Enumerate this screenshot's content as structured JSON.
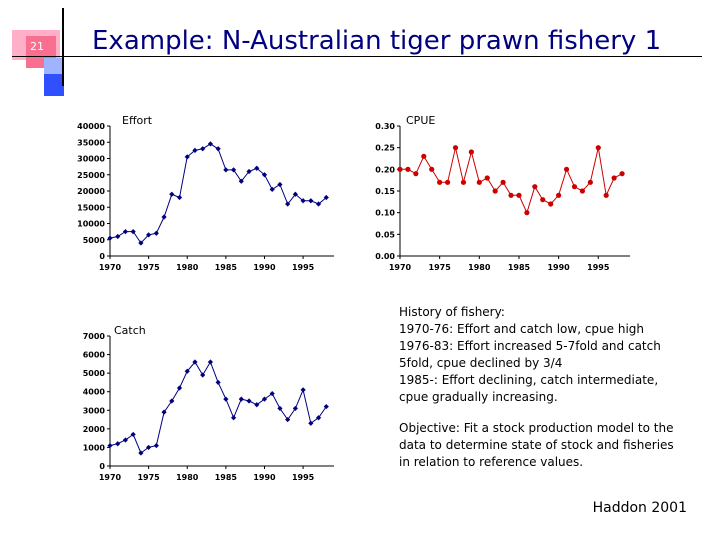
{
  "slide": {
    "number": "21",
    "title": "Example: N-Australian tiger prawn fishery 1"
  },
  "colors": {
    "effort": "#000080",
    "cpue": "#cc0000",
    "catch": "#000080",
    "title": "#000080"
  },
  "chart_data": [
    {
      "type": "line",
      "title": "Effort",
      "x": [
        1970,
        1971,
        1972,
        1973,
        1974,
        1975,
        1976,
        1977,
        1978,
        1979,
        1980,
        1981,
        1982,
        1983,
        1984,
        1985,
        1986,
        1987,
        1988,
        1989,
        1990,
        1991,
        1992,
        1993,
        1994,
        1995,
        1996,
        1997,
        1998
      ],
      "values": [
        5500,
        6000,
        7500,
        7500,
        4000,
        6500,
        7000,
        12000,
        19000,
        18000,
        30500,
        32500,
        33000,
        34500,
        33000,
        26500,
        26500,
        23000,
        26000,
        27000,
        25000,
        20500,
        22000,
        16000,
        19000,
        17000,
        17000,
        16000,
        18000
      ],
      "xlim": [
        1970,
        1999
      ],
      "ylim": [
        0,
        40000
      ],
      "yticks": [
        "0",
        "5000",
        "10000",
        "15000",
        "20000",
        "25000",
        "30000",
        "35000",
        "40000"
      ],
      "xticks": [
        "1970",
        "1975",
        "1980",
        "1985",
        "1990",
        "1995"
      ]
    },
    {
      "type": "line",
      "title": "CPUE",
      "x": [
        1970,
        1971,
        1972,
        1973,
        1974,
        1975,
        1976,
        1977,
        1978,
        1979,
        1980,
        1981,
        1982,
        1983,
        1984,
        1985,
        1986,
        1987,
        1988,
        1989,
        1990,
        1991,
        1992,
        1993,
        1994,
        1995,
        1996,
        1997,
        1998
      ],
      "values": [
        0.2,
        0.2,
        0.19,
        0.23,
        0.2,
        0.17,
        0.17,
        0.25,
        0.17,
        0.24,
        0.17,
        0.18,
        0.15,
        0.17,
        0.14,
        0.14,
        0.1,
        0.16,
        0.13,
        0.12,
        0.14,
        0.2,
        0.16,
        0.15,
        0.17,
        0.25,
        0.14,
        0.18,
        0.19
      ],
      "xlim": [
        1970,
        1999
      ],
      "ylim": [
        0,
        0.3
      ],
      "yticks": [
        "0.00",
        "0.05",
        "0.10",
        "0.15",
        "0.20",
        "0.25",
        "0.30"
      ],
      "xticks": [
        "1970",
        "1975",
        "1980",
        "1985",
        "1990",
        "1995"
      ]
    },
    {
      "type": "line",
      "title": "Catch",
      "x": [
        1970,
        1971,
        1972,
        1973,
        1974,
        1975,
        1976,
        1977,
        1978,
        1979,
        1980,
        1981,
        1982,
        1983,
        1984,
        1985,
        1986,
        1987,
        1988,
        1989,
        1990,
        1991,
        1992,
        1993,
        1994,
        1995,
        1996,
        1997,
        1998
      ],
      "values": [
        1100,
        1200,
        1400,
        1700,
        700,
        1000,
        1100,
        2900,
        3500,
        4200,
        5100,
        5600,
        4900,
        5600,
        4500,
        3600,
        2600,
        3600,
        3500,
        3300,
        3600,
        3900,
        3100,
        2500,
        3100,
        4100,
        2300,
        2600,
        3200
      ],
      "xlim": [
        1970,
        1999
      ],
      "ylim": [
        0,
        7000
      ],
      "yticks": [
        "0",
        "1000",
        "2000",
        "3000",
        "4000",
        "5000",
        "6000",
        "7000"
      ],
      "xticks": [
        "1970",
        "1975",
        "1980",
        "1985",
        "1990",
        "1995"
      ]
    }
  ],
  "text": {
    "history_lines": [
      "History of fishery:",
      "1970-76: Effort and catch low, cpue high",
      "1976-83: Effort increased 5-7fold and catch",
      "5fold, cpue declined by 3/4",
      "1985-: Effort declining, catch intermediate,",
      "cpue gradually increasing."
    ],
    "objective_lines": [
      "Objective: Fit a stock production model to the",
      "data to determine state of stock and fisheries",
      "in relation to reference values."
    ],
    "citation": "Haddon 2001"
  }
}
